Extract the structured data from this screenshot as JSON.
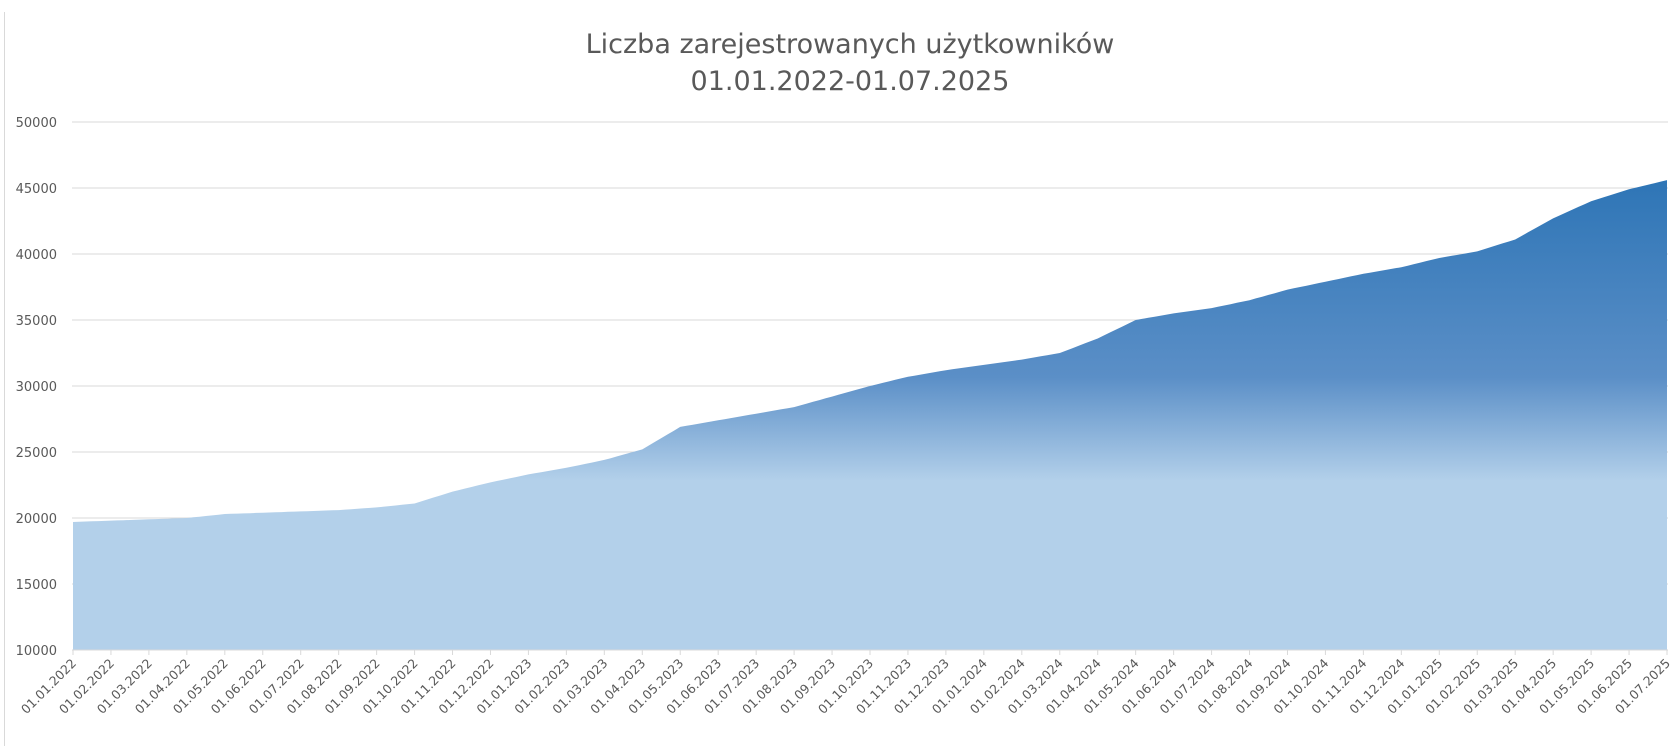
{
  "chart_data": {
    "type": "area",
    "title": "Liczba zarejestrowanych użytkowników",
    "subtitle": "01.01.2022-01.07.2025",
    "xlabel": "",
    "ylabel": "",
    "ylim": [
      10000,
      50000
    ],
    "yticks": [
      10000,
      15000,
      20000,
      25000,
      30000,
      35000,
      40000,
      45000,
      50000
    ],
    "grid": true,
    "legend": null,
    "categories": [
      "01.01.2022",
      "01.02.2022",
      "01.03.2022",
      "01.04.2022",
      "01.05.2022",
      "01.06.2022",
      "01.07.2022",
      "01.08.2022",
      "01.09.2022",
      "01.10.2022",
      "01.11.2022",
      "01.12.2022",
      "01.01.2023",
      "01.02.2023",
      "01.03.2023",
      "01.04.2023",
      "01.05.2023",
      "01.06.2023",
      "01.07.2023",
      "01.08.2023",
      "01.09.2023",
      "01.10.2023",
      "01.11.2023",
      "01.12.2023",
      "01.01.2024",
      "01.02.2024",
      "01.03.2024",
      "01.04.2024",
      "01.05.2024",
      "01.06.2024",
      "01.07.2024",
      "01.08.2024",
      "01.09.2024",
      "01.10.2024",
      "01.11.2024",
      "01.12.2024",
      "01.01.2025",
      "01.02.2025",
      "01.03.2025",
      "01.04.2025",
      "01.05.2025",
      "01.06.2025",
      "01.07.2025"
    ],
    "series": [
      {
        "name": "Liczba zarejestrowanych użytkowników",
        "values": [
          19700,
          19800,
          19900,
          20000,
          20300,
          20400,
          20500,
          20600,
          20800,
          21100,
          22000,
          22700,
          23300,
          23800,
          24400,
          25200,
          26900,
          27400,
          27900,
          28400,
          29200,
          30000,
          30700,
          31200,
          31600,
          32000,
          32500,
          33600,
          35000,
          35500,
          35900,
          36500,
          37300,
          37900,
          38500,
          39000,
          39700,
          40200,
          41100,
          42700,
          44000,
          44900,
          45600
        ]
      }
    ],
    "colors": {
      "fill_top": "#2E75B6",
      "fill_mid": "#5B8FC7",
      "fill_bottom": "#B3D0EA",
      "grid": "#d9d9d9",
      "text": "#595959"
    }
  }
}
